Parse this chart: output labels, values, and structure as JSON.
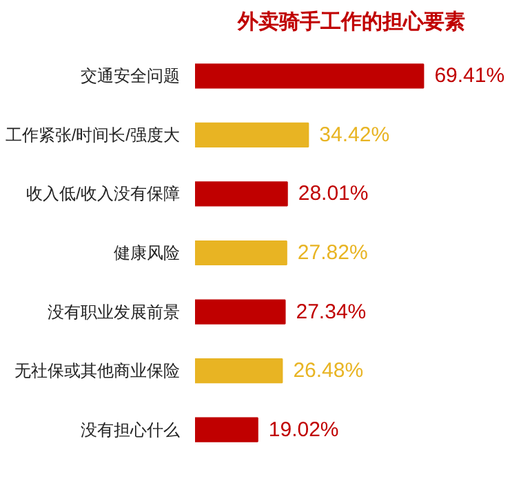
{
  "chart_data": {
    "type": "bar",
    "orientation": "horizontal",
    "title": "外卖骑手工作的担心要素",
    "categories": [
      "交通安全问题",
      "工作紧张/时间长/强度大",
      "收入低/收入没有保障",
      "健康风险",
      "没有职业发展前景",
      "无社保或其他商业保险",
      "没有担心什么"
    ],
    "values": [
      69.41,
      34.42,
      28.01,
      27.82,
      27.34,
      26.48,
      19.02
    ],
    "colors": [
      "#c00000",
      "#e8b423",
      "#c00000",
      "#e8b423",
      "#c00000",
      "#e8b423",
      "#c00000"
    ],
    "value_labels": [
      "69.41%",
      "34.42%",
      "28.01%",
      "27.82%",
      "27.34%",
      "26.48%",
      "19.02%"
    ],
    "tick_labels": "y",
    "grid": false
  }
}
